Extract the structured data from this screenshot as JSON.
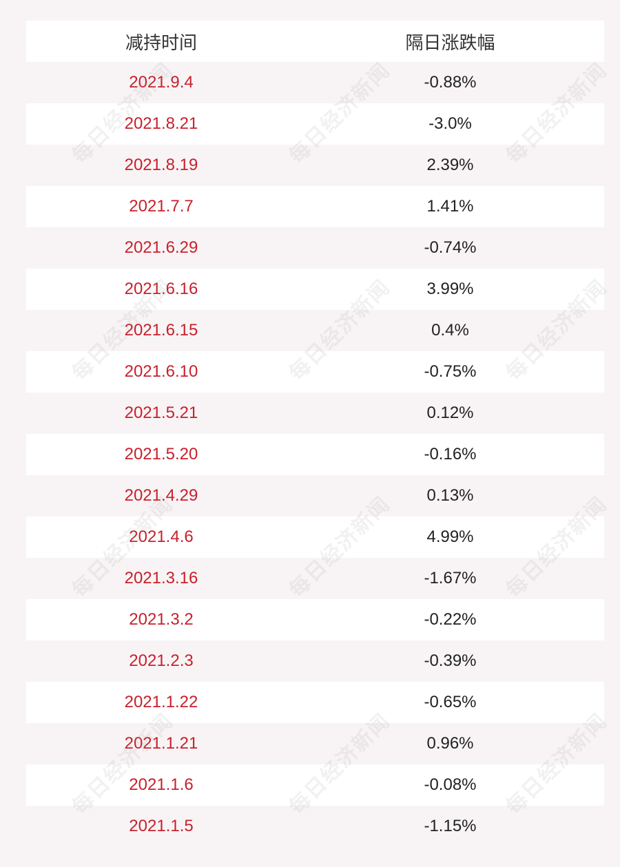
{
  "header": {
    "col1": "减持时间",
    "col2": "隔日涨跌幅"
  },
  "rows": [
    {
      "date": "2021.9.4",
      "change": "-0.88%"
    },
    {
      "date": "2021.8.21",
      "change": "-3.0%"
    },
    {
      "date": "2021.8.19",
      "change": "2.39%"
    },
    {
      "date": "2021.7.7",
      "change": "1.41%"
    },
    {
      "date": "2021.6.29",
      "change": "-0.74%"
    },
    {
      "date": "2021.6.16",
      "change": "3.99%"
    },
    {
      "date": "2021.6.15",
      "change": "0.4%"
    },
    {
      "date": "2021.6.10",
      "change": "-0.75%"
    },
    {
      "date": "2021.5.21",
      "change": "0.12%"
    },
    {
      "date": "2021.5.20",
      "change": "-0.16%"
    },
    {
      "date": "2021.4.29",
      "change": "0.13%"
    },
    {
      "date": "2021.4.6",
      "change": "4.99%"
    },
    {
      "date": "2021.3.16",
      "change": "-1.67%"
    },
    {
      "date": "2021.3.2",
      "change": "-0.22%"
    },
    {
      "date": "2021.2.3",
      "change": "-0.39%"
    },
    {
      "date": "2021.1.22",
      "change": "-0.65%"
    },
    {
      "date": "2021.1.21",
      "change": "0.96%"
    },
    {
      "date": "2021.1.6",
      "change": "-0.08%"
    },
    {
      "date": "2021.1.5",
      "change": "-1.15%"
    }
  ],
  "watermark": "每日经济新闻",
  "colors": {
    "date_text": "#c8202c",
    "value_text": "#222222",
    "background": "#f8f4f5",
    "stripe": "#ffffff"
  }
}
